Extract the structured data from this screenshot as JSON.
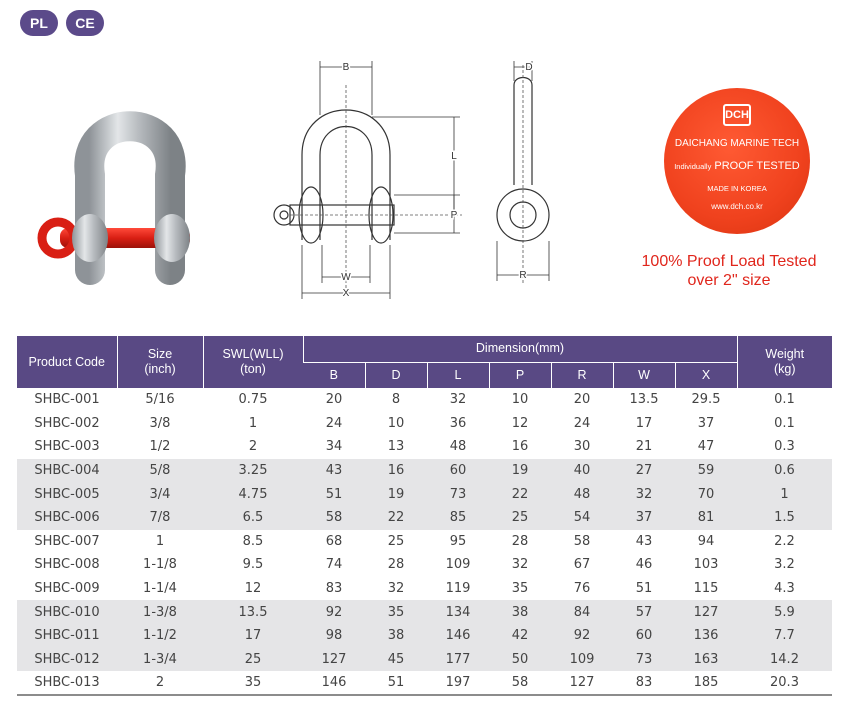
{
  "badges": [
    "PL",
    "CE"
  ],
  "drawing_labels": {
    "B": "B",
    "D": "D",
    "L": "L",
    "P": "P",
    "W": "W",
    "X": "X",
    "R": "R"
  },
  "tag": {
    "logo": "DCH",
    "company": "DAICHANG MARINE TECH",
    "proof_prefix": "Individually",
    "proof_main": "PROOF TESTED",
    "made_in": "MADE IN KOREA",
    "website": "www.dch.co.kr"
  },
  "proof_note": [
    "100% Proof Load Tested",
    "over 2\" size"
  ],
  "table": {
    "headers": {
      "product_code": "Product Code",
      "size": [
        "Size",
        "(inch)"
      ],
      "swl": [
        "SWL(WLL)",
        "(ton)"
      ],
      "dimension": "Dimension(mm)",
      "dim_cols": [
        "B",
        "D",
        "L",
        "P",
        "R",
        "W",
        "X"
      ],
      "weight": [
        "Weight",
        "(kg)"
      ]
    },
    "rows": [
      [
        "SHBC-001",
        "5/16",
        "0.75",
        "20",
        "8",
        "32",
        "10",
        "20",
        "13.5",
        "29.5",
        "0.1"
      ],
      [
        "SHBC-002",
        "3/8",
        "1",
        "24",
        "10",
        "36",
        "12",
        "24",
        "17",
        "37",
        "0.1"
      ],
      [
        "SHBC-003",
        "1/2",
        "2",
        "34",
        "13",
        "48",
        "16",
        "30",
        "21",
        "47",
        "0.3"
      ],
      [
        "SHBC-004",
        "5/8",
        "3.25",
        "43",
        "16",
        "60",
        "19",
        "40",
        "27",
        "59",
        "0.6"
      ],
      [
        "SHBC-005",
        "3/4",
        "4.75",
        "51",
        "19",
        "73",
        "22",
        "48",
        "32",
        "70",
        "1"
      ],
      [
        "SHBC-006",
        "7/8",
        "6.5",
        "58",
        "22",
        "85",
        "25",
        "54",
        "37",
        "81",
        "1.5"
      ],
      [
        "SHBC-007",
        "1",
        "8.5",
        "68",
        "25",
        "95",
        "28",
        "58",
        "43",
        "94",
        "2.2"
      ],
      [
        "SHBC-008",
        "1-1/8",
        "9.5",
        "74",
        "28",
        "109",
        "32",
        "67",
        "46",
        "103",
        "3.2"
      ],
      [
        "SHBC-009",
        "1-1/4",
        "12",
        "83",
        "32",
        "119",
        "35",
        "76",
        "51",
        "115",
        "4.3"
      ],
      [
        "SHBC-010",
        "1-3/8",
        "13.5",
        "92",
        "35",
        "134",
        "38",
        "84",
        "57",
        "127",
        "5.9"
      ],
      [
        "SHBC-011",
        "1-1/2",
        "17",
        "98",
        "38",
        "146",
        "42",
        "92",
        "60",
        "136",
        "7.7"
      ],
      [
        "SHBC-012",
        "1-3/4",
        "25",
        "127",
        "45",
        "177",
        "50",
        "109",
        "73",
        "163",
        "14.2"
      ],
      [
        "SHBC-013",
        "2",
        "35",
        "146",
        "51",
        "197",
        "58",
        "127",
        "83",
        "185",
        "20.3"
      ]
    ]
  }
}
